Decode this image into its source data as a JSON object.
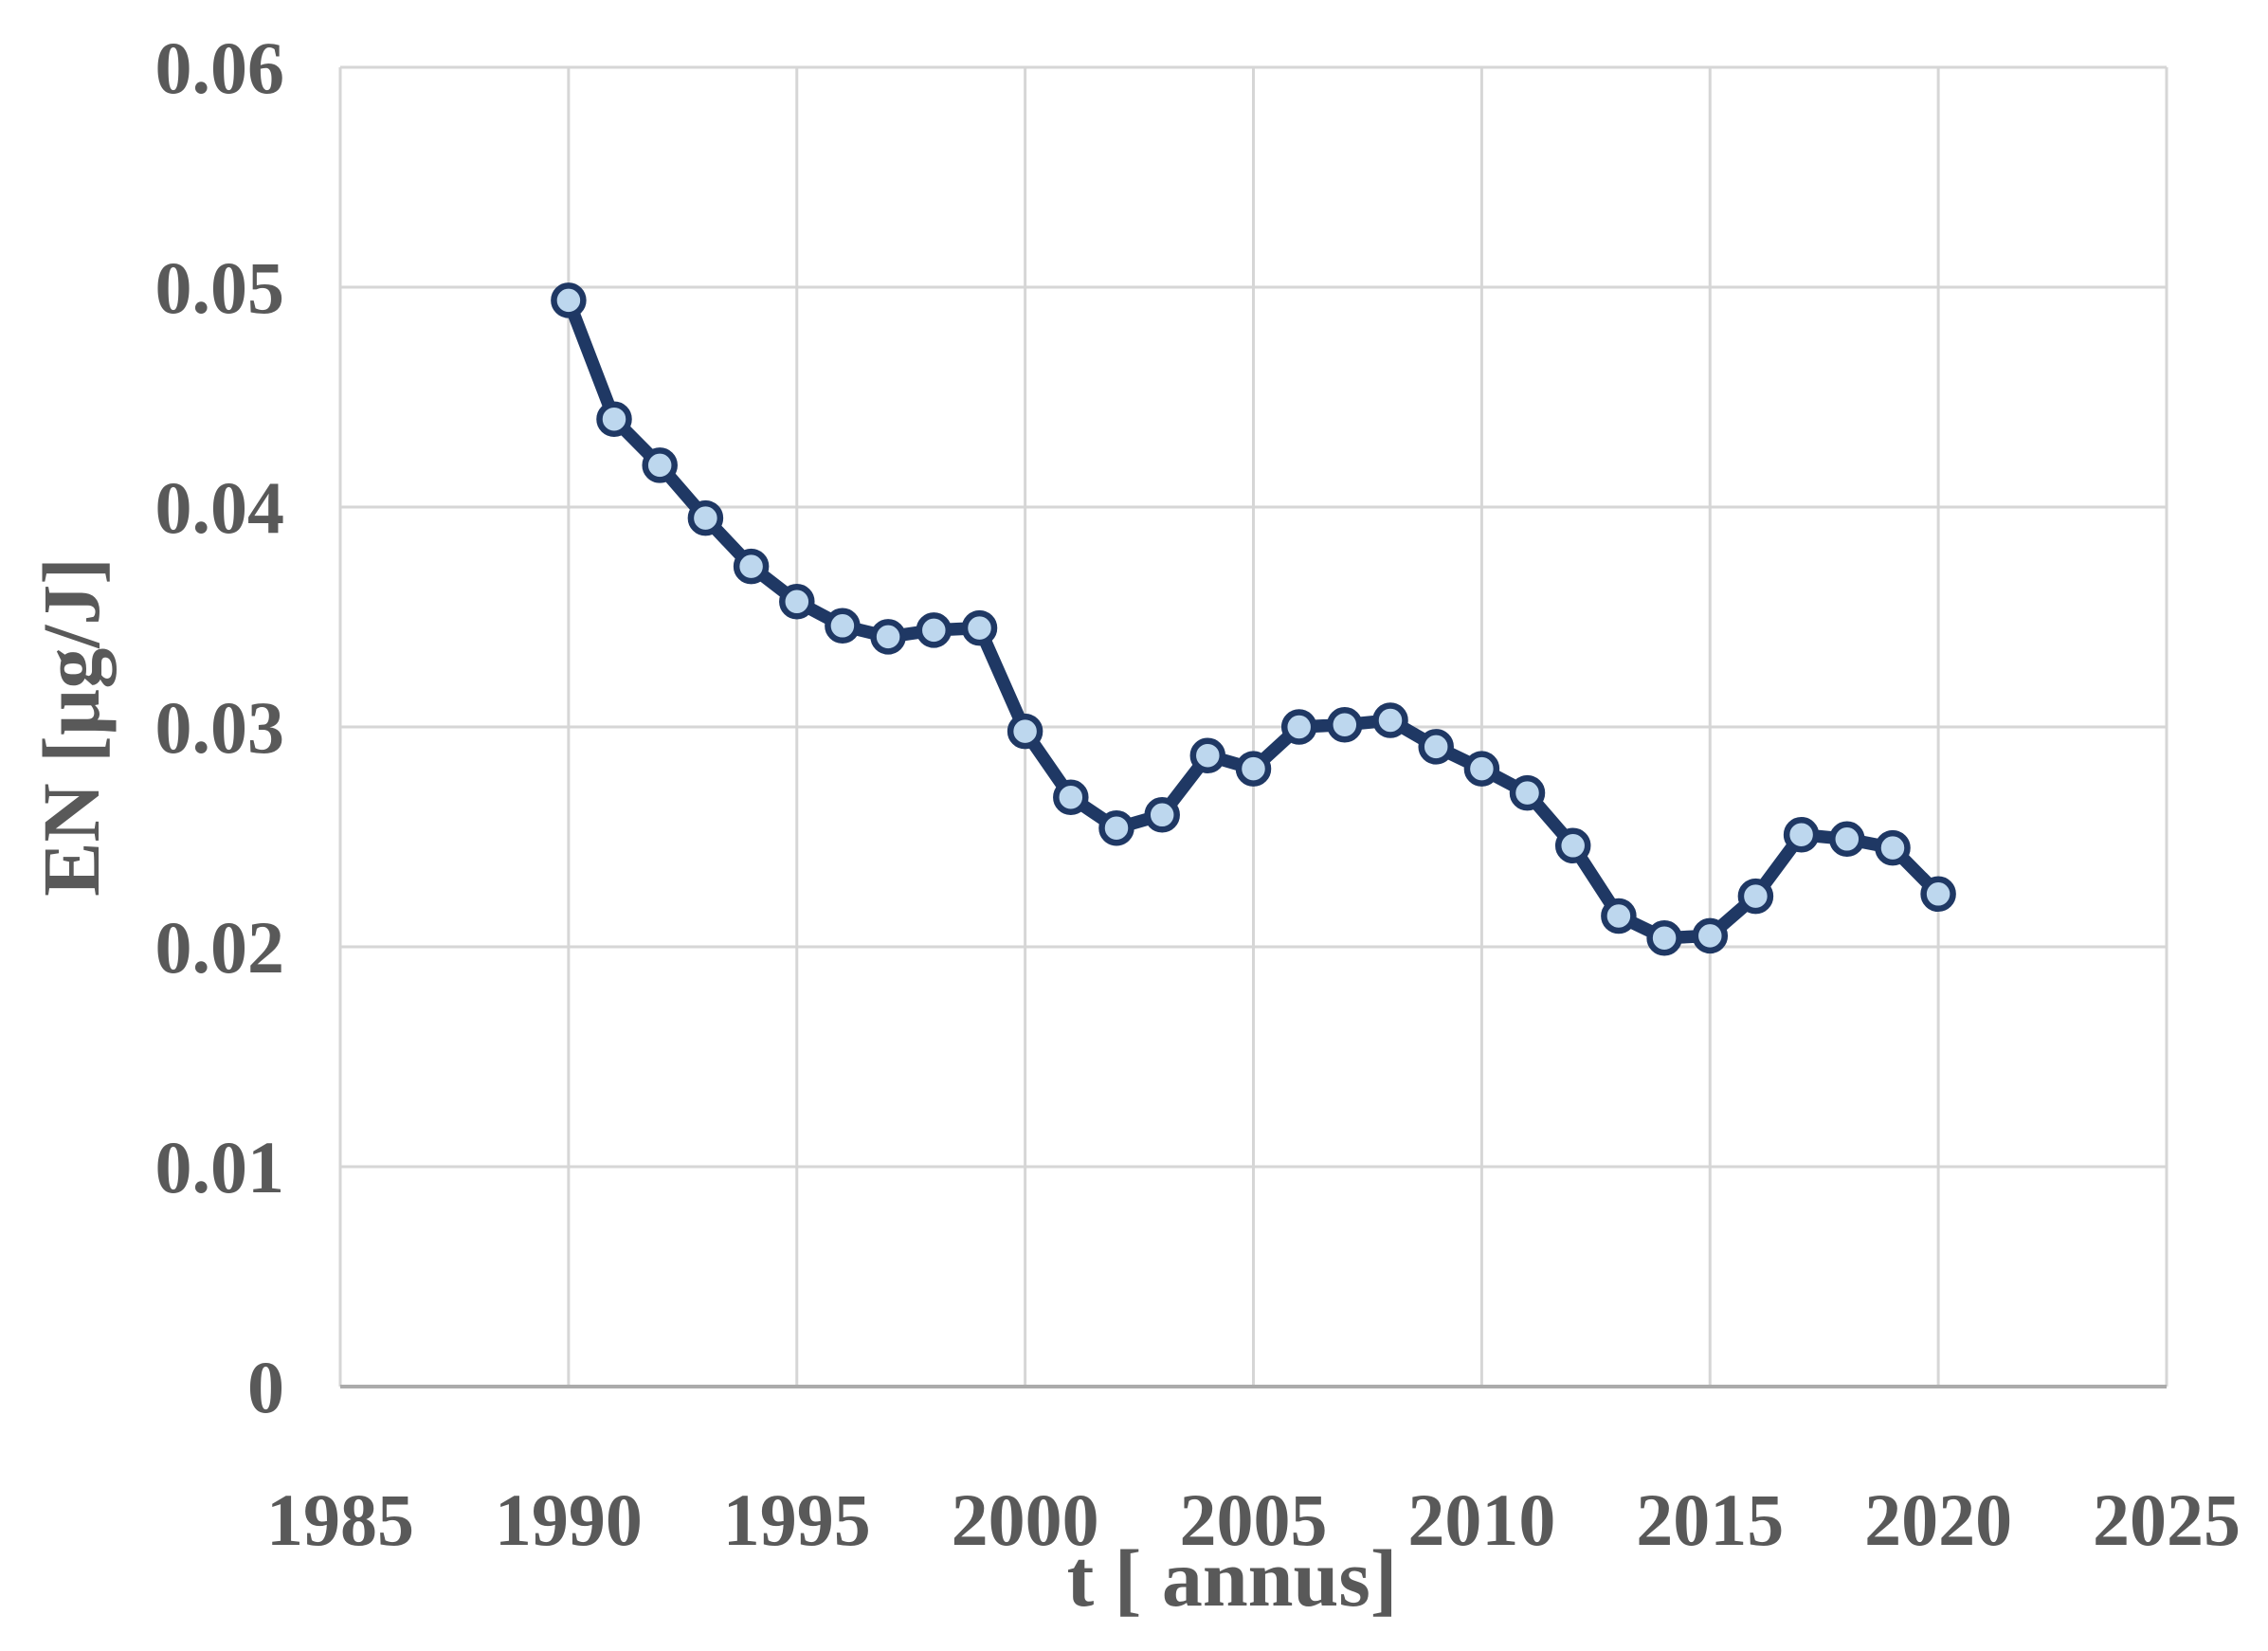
{
  "page": {
    "background": "#ffffff"
  },
  "chart_data": {
    "type": "line",
    "title": "",
    "xlabel": "t [ annus]",
    "ylabel": "EN [µg/J]",
    "xlim": [
      1985,
      2025
    ],
    "ylim": [
      0,
      0.06
    ],
    "x_ticks": [
      1985,
      1990,
      1995,
      2000,
      2005,
      2010,
      2015,
      2020,
      2025
    ],
    "y_ticks": [
      0,
      0.01,
      0.02,
      0.03,
      0.04,
      0.05,
      0.06
    ],
    "grid": true,
    "legend": false,
    "x": [
      1990,
      1991,
      1992,
      1993,
      1994,
      1995,
      1996,
      1997,
      1998,
      1999,
      2000,
      2001,
      2002,
      2003,
      2004,
      2005,
      2006,
      2007,
      2008,
      2009,
      2010,
      2011,
      2012,
      2013,
      2014,
      2015,
      2016,
      2017,
      2018,
      2019,
      2020
    ],
    "series": [
      {
        "name": "EN",
        "values": [
          0.0494,
          0.044,
          0.0419,
          0.0395,
          0.0373,
          0.0357,
          0.0346,
          0.0341,
          0.0344,
          0.0345,
          0.0298,
          0.0268,
          0.0254,
          0.026,
          0.0287,
          0.0281,
          0.03,
          0.0301,
          0.0303,
          0.0291,
          0.0281,
          0.027,
          0.0246,
          0.0214,
          0.0204,
          0.0205,
          0.0223,
          0.0251,
          0.0249,
          0.0245,
          0.0224
        ]
      }
    ],
    "colors": {
      "line": "#1F3864",
      "marker_fill": "#BDD7EE",
      "marker_stroke": "#1F3864",
      "gridline": "#D6D6D6",
      "axis_line": "#ABABAB",
      "label": "#595959"
    }
  }
}
